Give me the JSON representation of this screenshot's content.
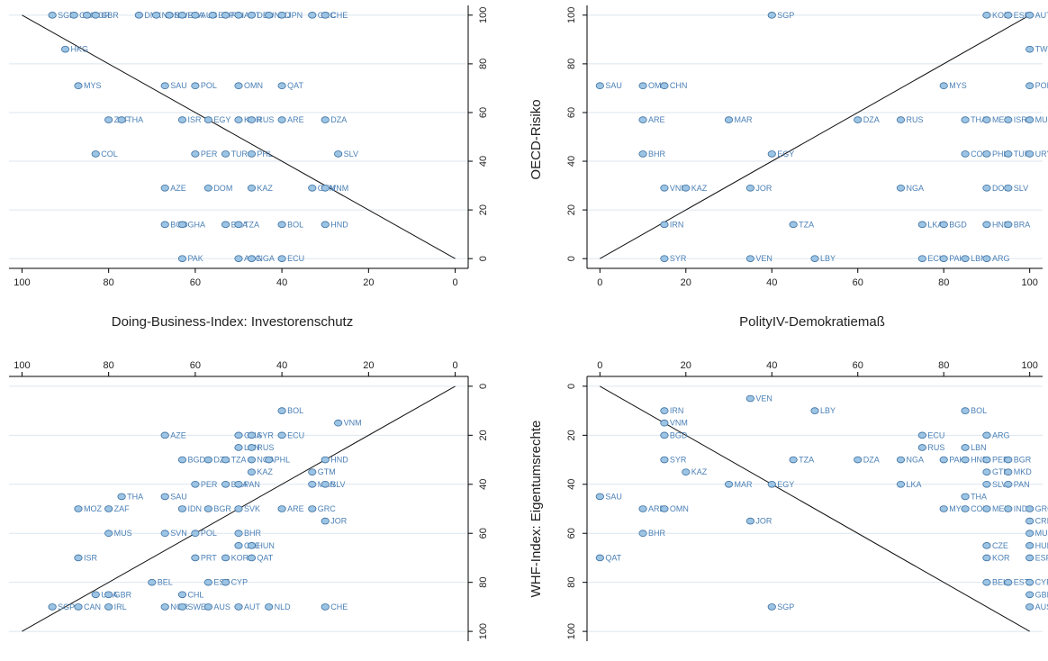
{
  "axis_titles": {
    "doing_business": "Doing-Business-Index: Investorenschutz",
    "polity": "PolityIV-Demokratiemaß",
    "oecd": "OECD-Risiko",
    "whf": "WHF-Index: Eigentumsrechte"
  },
  "colors": {
    "marker_fill": "#9cc4e4",
    "marker_edge": "#3d6f9f",
    "label": "#4a7fb5",
    "grid": "#dbe6ef"
  },
  "chart_data": [
    {
      "type": "scatter",
      "id": "tl",
      "xlabel": "Doing-Business-Index: Investorenschutz",
      "ylabel": "OECD-Risiko",
      "xlim": [
        103,
        -3
      ],
      "ylim": [
        -4,
        104
      ],
      "x_axis_side": "bottom",
      "y_axis_side": "right",
      "y_reversed": false,
      "xticks": [
        100,
        80,
        60,
        40,
        20,
        0
      ],
      "yticks": [
        0,
        20,
        40,
        60,
        80,
        100
      ],
      "ref_line": [
        [
          100,
          100
        ],
        [
          0,
          0
        ]
      ],
      "points": [
        {
          "x": 93,
          "y": 100,
          "label": "SGP"
        },
        {
          "x": 88,
          "y": 100,
          "label": "CAN"
        },
        {
          "x": 85,
          "y": 100,
          "label": "KOR"
        },
        {
          "x": 83,
          "y": 100,
          "label": "GBR"
        },
        {
          "x": 73,
          "y": 100,
          "label": "DNK"
        },
        {
          "x": 69,
          "y": 100,
          "label": "NOR"
        },
        {
          "x": 66,
          "y": 100,
          "label": "SWE"
        },
        {
          "x": 63,
          "y": 100,
          "label": "FRA"
        },
        {
          "x": 60,
          "y": 100,
          "label": "AUS"
        },
        {
          "x": 56,
          "y": 100,
          "label": "ESP"
        },
        {
          "x": 53,
          "y": 100,
          "label": "FIN"
        },
        {
          "x": 50,
          "y": 100,
          "label": "AUT"
        },
        {
          "x": 47,
          "y": 100,
          "label": "DEU"
        },
        {
          "x": 43,
          "y": 100,
          "label": "NLD"
        },
        {
          "x": 40,
          "y": 100,
          "label": "JPN"
        },
        {
          "x": 33,
          "y": 100,
          "label": "GRC"
        },
        {
          "x": 30,
          "y": 100,
          "label": "CHE"
        },
        {
          "x": 90,
          "y": 86,
          "label": "HKG"
        },
        {
          "x": 87,
          "y": 71,
          "label": "MYS"
        },
        {
          "x": 67,
          "y": 71,
          "label": "SAU"
        },
        {
          "x": 60,
          "y": 71,
          "label": "POL"
        },
        {
          "x": 50,
          "y": 71,
          "label": "OMN"
        },
        {
          "x": 40,
          "y": 71,
          "label": "QAT"
        },
        {
          "x": 80,
          "y": 57,
          "label": "ZAF"
        },
        {
          "x": 77,
          "y": 57,
          "label": "THA"
        },
        {
          "x": 63,
          "y": 57,
          "label": "ISR"
        },
        {
          "x": 57,
          "y": 57,
          "label": "EGY"
        },
        {
          "x": 50,
          "y": 57,
          "label": "KOR"
        },
        {
          "x": 47,
          "y": 57,
          "label": "RUS"
        },
        {
          "x": 40,
          "y": 57,
          "label": "ARE"
        },
        {
          "x": 30,
          "y": 57,
          "label": "DZA"
        },
        {
          "x": 83,
          "y": 43,
          "label": "COL"
        },
        {
          "x": 60,
          "y": 43,
          "label": "PER"
        },
        {
          "x": 53,
          "y": 43,
          "label": "TUR"
        },
        {
          "x": 47,
          "y": 43,
          "label": "PHL"
        },
        {
          "x": 27,
          "y": 43,
          "label": "SLV"
        },
        {
          "x": 67,
          "y": 29,
          "label": "AZE"
        },
        {
          "x": 57,
          "y": 29,
          "label": "DOM"
        },
        {
          "x": 47,
          "y": 29,
          "label": "KAZ"
        },
        {
          "x": 33,
          "y": 29,
          "label": "GTM"
        },
        {
          "x": 30,
          "y": 29,
          "label": "VNM"
        },
        {
          "x": 67,
          "y": 14,
          "label": "BGD"
        },
        {
          "x": 63,
          "y": 14,
          "label": "GHA"
        },
        {
          "x": 53,
          "y": 14,
          "label": "BRA"
        },
        {
          "x": 50,
          "y": 14,
          "label": "TZA"
        },
        {
          "x": 40,
          "y": 14,
          "label": "BOL"
        },
        {
          "x": 30,
          "y": 14,
          "label": "HND"
        },
        {
          "x": 63,
          "y": 0,
          "label": "PAK"
        },
        {
          "x": 50,
          "y": 0,
          "label": "ARG"
        },
        {
          "x": 47,
          "y": 0,
          "label": "NGA"
        },
        {
          "x": 40,
          "y": 0,
          "label": "ECU"
        }
      ]
    },
    {
      "type": "scatter",
      "id": "tr",
      "xlabel": "PolityIV-Demokratiemaß",
      "ylabel": "OECD-Risiko",
      "xlim": [
        -3,
        103
      ],
      "ylim": [
        -4,
        104
      ],
      "x_axis_side": "bottom",
      "y_axis_side": "left",
      "y_reversed": false,
      "xticks": [
        0,
        20,
        40,
        60,
        80,
        100
      ],
      "yticks": [
        0,
        20,
        40,
        60,
        80,
        100
      ],
      "ref_line": [
        [
          0,
          0
        ],
        [
          100,
          100
        ]
      ],
      "points": [
        {
          "x": 40,
          "y": 100,
          "label": "SGP"
        },
        {
          "x": 90,
          "y": 100,
          "label": "KOR"
        },
        {
          "x": 95,
          "y": 100,
          "label": "ESP"
        },
        {
          "x": 100,
          "y": 100,
          "label": "AUT"
        },
        {
          "x": 100,
          "y": 86,
          "label": "TWN"
        },
        {
          "x": 0,
          "y": 71,
          "label": "SAU"
        },
        {
          "x": 10,
          "y": 71,
          "label": "OMN"
        },
        {
          "x": 15,
          "y": 71,
          "label": "CHN"
        },
        {
          "x": 80,
          "y": 71,
          "label": "MYS"
        },
        {
          "x": 100,
          "y": 71,
          "label": "POL"
        },
        {
          "x": 10,
          "y": 57,
          "label": "ARE"
        },
        {
          "x": 30,
          "y": 57,
          "label": "MAR"
        },
        {
          "x": 60,
          "y": 57,
          "label": "DZA"
        },
        {
          "x": 70,
          "y": 57,
          "label": "RUS"
        },
        {
          "x": 85,
          "y": 57,
          "label": "THA"
        },
        {
          "x": 90,
          "y": 57,
          "label": "MEX"
        },
        {
          "x": 95,
          "y": 57,
          "label": "ISR"
        },
        {
          "x": 100,
          "y": 57,
          "label": "MUS"
        },
        {
          "x": 10,
          "y": 43,
          "label": "BHR"
        },
        {
          "x": 40,
          "y": 43,
          "label": "EGY"
        },
        {
          "x": 85,
          "y": 43,
          "label": "COL"
        },
        {
          "x": 90,
          "y": 43,
          "label": "PHL"
        },
        {
          "x": 95,
          "y": 43,
          "label": "TUR"
        },
        {
          "x": 100,
          "y": 43,
          "label": "URY"
        },
        {
          "x": 15,
          "y": 29,
          "label": "VNM"
        },
        {
          "x": 20,
          "y": 29,
          "label": "KAZ"
        },
        {
          "x": 35,
          "y": 29,
          "label": "JOR"
        },
        {
          "x": 70,
          "y": 29,
          "label": "NGA"
        },
        {
          "x": 90,
          "y": 29,
          "label": "DOM"
        },
        {
          "x": 95,
          "y": 29,
          "label": "SLV"
        },
        {
          "x": 15,
          "y": 14,
          "label": "IRN"
        },
        {
          "x": 45,
          "y": 14,
          "label": "TZA"
        },
        {
          "x": 75,
          "y": 14,
          "label": "LKA"
        },
        {
          "x": 80,
          "y": 14,
          "label": "BGD"
        },
        {
          "x": 90,
          "y": 14,
          "label": "HND"
        },
        {
          "x": 95,
          "y": 14,
          "label": "BRA"
        },
        {
          "x": 15,
          "y": 0,
          "label": "SYR"
        },
        {
          "x": 35,
          "y": 0,
          "label": "VEN"
        },
        {
          "x": 50,
          "y": 0,
          "label": "LBY"
        },
        {
          "x": 75,
          "y": 0,
          "label": "ECU"
        },
        {
          "x": 80,
          "y": 0,
          "label": "PAK"
        },
        {
          "x": 85,
          "y": 0,
          "label": "LBN"
        },
        {
          "x": 90,
          "y": 0,
          "label": "ARG"
        }
      ]
    },
    {
      "type": "scatter",
      "id": "bl",
      "xlabel": "Doing-Business-Index: Investorenschutz",
      "ylabel": "WHF-Index: Eigentumsrechte",
      "xlim": [
        103,
        -3
      ],
      "ylim": [
        -4,
        104
      ],
      "x_axis_side": "top",
      "y_axis_side": "right",
      "y_reversed": true,
      "xticks": [
        100,
        80,
        60,
        40,
        20,
        0
      ],
      "yticks": [
        0,
        20,
        40,
        60,
        80,
        100
      ],
      "ref_line": [
        [
          0,
          0
        ],
        [
          100,
          100
        ]
      ],
      "points": [
        {
          "x": 40,
          "y": 10,
          "label": "BOL"
        },
        {
          "x": 27,
          "y": 15,
          "label": "VNM"
        },
        {
          "x": 67,
          "y": 20,
          "label": "AZE"
        },
        {
          "x": 50,
          "y": 20,
          "label": "GHA"
        },
        {
          "x": 47,
          "y": 20,
          "label": "SYR"
        },
        {
          "x": 40,
          "y": 20,
          "label": "ECU"
        },
        {
          "x": 50,
          "y": 25,
          "label": "LBN"
        },
        {
          "x": 47,
          "y": 25,
          "label": "RUS"
        },
        {
          "x": 63,
          "y": 30,
          "label": "BGD"
        },
        {
          "x": 57,
          "y": 30,
          "label": "DZA"
        },
        {
          "x": 53,
          "y": 30,
          "label": "TZA"
        },
        {
          "x": 47,
          "y": 30,
          "label": "NGA"
        },
        {
          "x": 43,
          "y": 30,
          "label": "PHL"
        },
        {
          "x": 30,
          "y": 30,
          "label": "HND"
        },
        {
          "x": 47,
          "y": 35,
          "label": "KAZ"
        },
        {
          "x": 33,
          "y": 35,
          "label": "GTM"
        },
        {
          "x": 60,
          "y": 40,
          "label": "PER"
        },
        {
          "x": 53,
          "y": 40,
          "label": "BRA"
        },
        {
          "x": 50,
          "y": 40,
          "label": "PAN"
        },
        {
          "x": 33,
          "y": 40,
          "label": "MAR"
        },
        {
          "x": 30,
          "y": 40,
          "label": "SLV"
        },
        {
          "x": 77,
          "y": 45,
          "label": "THA"
        },
        {
          "x": 67,
          "y": 45,
          "label": "SAU"
        },
        {
          "x": 87,
          "y": 50,
          "label": "MOZ"
        },
        {
          "x": 80,
          "y": 50,
          "label": "ZAF"
        },
        {
          "x": 63,
          "y": 50,
          "label": "IDN"
        },
        {
          "x": 57,
          "y": 50,
          "label": "BGR"
        },
        {
          "x": 50,
          "y": 50,
          "label": "SVK"
        },
        {
          "x": 40,
          "y": 50,
          "label": "ARE"
        },
        {
          "x": 33,
          "y": 50,
          "label": "GRC"
        },
        {
          "x": 30,
          "y": 55,
          "label": "JOR"
        },
        {
          "x": 80,
          "y": 60,
          "label": "MUS"
        },
        {
          "x": 67,
          "y": 60,
          "label": "SVN"
        },
        {
          "x": 60,
          "y": 60,
          "label": "POL"
        },
        {
          "x": 50,
          "y": 60,
          "label": "BHR"
        },
        {
          "x": 50,
          "y": 65,
          "label": "CZE"
        },
        {
          "x": 47,
          "y": 65,
          "label": "HUN"
        },
        {
          "x": 87,
          "y": 70,
          "label": "ISR"
        },
        {
          "x": 60,
          "y": 70,
          "label": "PRT"
        },
        {
          "x": 53,
          "y": 70,
          "label": "KOR"
        },
        {
          "x": 47,
          "y": 70,
          "label": "QAT"
        },
        {
          "x": 70,
          "y": 80,
          "label": "BEL"
        },
        {
          "x": 57,
          "y": 80,
          "label": "EST"
        },
        {
          "x": 53,
          "y": 80,
          "label": "CYP"
        },
        {
          "x": 83,
          "y": 85,
          "label": "USA"
        },
        {
          "x": 80,
          "y": 85,
          "label": "GBR"
        },
        {
          "x": 63,
          "y": 85,
          "label": "CHL"
        },
        {
          "x": 93,
          "y": 90,
          "label": "SGP"
        },
        {
          "x": 87,
          "y": 90,
          "label": "CAN"
        },
        {
          "x": 80,
          "y": 90,
          "label": "IRL"
        },
        {
          "x": 67,
          "y": 90,
          "label": "NOR"
        },
        {
          "x": 63,
          "y": 90,
          "label": "SWE"
        },
        {
          "x": 57,
          "y": 90,
          "label": "AUS"
        },
        {
          "x": 50,
          "y": 90,
          "label": "AUT"
        },
        {
          "x": 43,
          "y": 90,
          "label": "NLD"
        },
        {
          "x": 30,
          "y": 90,
          "label": "CHE"
        }
      ]
    },
    {
      "type": "scatter",
      "id": "br",
      "xlabel": "PolityIV-Demokratiemaß",
      "ylabel": "WHF-Index: Eigentumsrechte",
      "xlim": [
        -3,
        103
      ],
      "ylim": [
        -4,
        104
      ],
      "x_axis_side": "top",
      "y_axis_side": "left",
      "y_reversed": true,
      "xticks": [
        0,
        20,
        40,
        60,
        80,
        100
      ],
      "yticks": [
        0,
        20,
        40,
        60,
        80,
        100
      ],
      "ref_line": [
        [
          0,
          0
        ],
        [
          100,
          100
        ]
      ],
      "points": [
        {
          "x": 35,
          "y": 5,
          "label": "VEN"
        },
        {
          "x": 15,
          "y": 10,
          "label": "IRN"
        },
        {
          "x": 50,
          "y": 10,
          "label": "LBY"
        },
        {
          "x": 85,
          "y": 10,
          "label": "BOL"
        },
        {
          "x": 15,
          "y": 15,
          "label": "VNM"
        },
        {
          "x": 15,
          "y": 20,
          "label": "BGD"
        },
        {
          "x": 75,
          "y": 20,
          "label": "ECU"
        },
        {
          "x": 90,
          "y": 20,
          "label": "ARG"
        },
        {
          "x": 75,
          "y": 25,
          "label": "RUS"
        },
        {
          "x": 85,
          "y": 25,
          "label": "LBN"
        },
        {
          "x": 15,
          "y": 30,
          "label": "SYR"
        },
        {
          "x": 45,
          "y": 30,
          "label": "TZA"
        },
        {
          "x": 60,
          "y": 30,
          "label": "DZA"
        },
        {
          "x": 70,
          "y": 30,
          "label": "NGA"
        },
        {
          "x": 80,
          "y": 30,
          "label": "PAK"
        },
        {
          "x": 85,
          "y": 30,
          "label": "HND"
        },
        {
          "x": 90,
          "y": 30,
          "label": "PER"
        },
        {
          "x": 95,
          "y": 30,
          "label": "BGR"
        },
        {
          "x": 20,
          "y": 35,
          "label": "KAZ"
        },
        {
          "x": 90,
          "y": 35,
          "label": "GTM"
        },
        {
          "x": 95,
          "y": 35,
          "label": "MKD"
        },
        {
          "x": 30,
          "y": 40,
          "label": "MAR"
        },
        {
          "x": 40,
          "y": 40,
          "label": "EGY"
        },
        {
          "x": 70,
          "y": 40,
          "label": "LKA"
        },
        {
          "x": 90,
          "y": 40,
          "label": "SLV"
        },
        {
          "x": 95,
          "y": 40,
          "label": "PAN"
        },
        {
          "x": 0,
          "y": 45,
          "label": "SAU"
        },
        {
          "x": 85,
          "y": 45,
          "label": "THA"
        },
        {
          "x": 10,
          "y": 50,
          "label": "ARE"
        },
        {
          "x": 15,
          "y": 50,
          "label": "OMN"
        },
        {
          "x": 80,
          "y": 50,
          "label": "MYS"
        },
        {
          "x": 85,
          "y": 50,
          "label": "COL"
        },
        {
          "x": 90,
          "y": 50,
          "label": "MEX"
        },
        {
          "x": 95,
          "y": 50,
          "label": "IND"
        },
        {
          "x": 100,
          "y": 50,
          "label": "GRC"
        },
        {
          "x": 35,
          "y": 55,
          "label": "JOR"
        },
        {
          "x": 100,
          "y": 55,
          "label": "CRI"
        },
        {
          "x": 10,
          "y": 60,
          "label": "BHR"
        },
        {
          "x": 100,
          "y": 60,
          "label": "MUS"
        },
        {
          "x": 90,
          "y": 65,
          "label": "CZE"
        },
        {
          "x": 100,
          "y": 65,
          "label": "HUN"
        },
        {
          "x": 0,
          "y": 70,
          "label": "QAT"
        },
        {
          "x": 90,
          "y": 70,
          "label": "KOR"
        },
        {
          "x": 100,
          "y": 70,
          "label": "ESP"
        },
        {
          "x": 90,
          "y": 80,
          "label": "BEL"
        },
        {
          "x": 95,
          "y": 80,
          "label": "EST"
        },
        {
          "x": 100,
          "y": 80,
          "label": "CYP"
        },
        {
          "x": 100,
          "y": 85,
          "label": "GBR"
        },
        {
          "x": 40,
          "y": 90,
          "label": "SGP"
        },
        {
          "x": 100,
          "y": 90,
          "label": "AUS"
        }
      ]
    }
  ]
}
